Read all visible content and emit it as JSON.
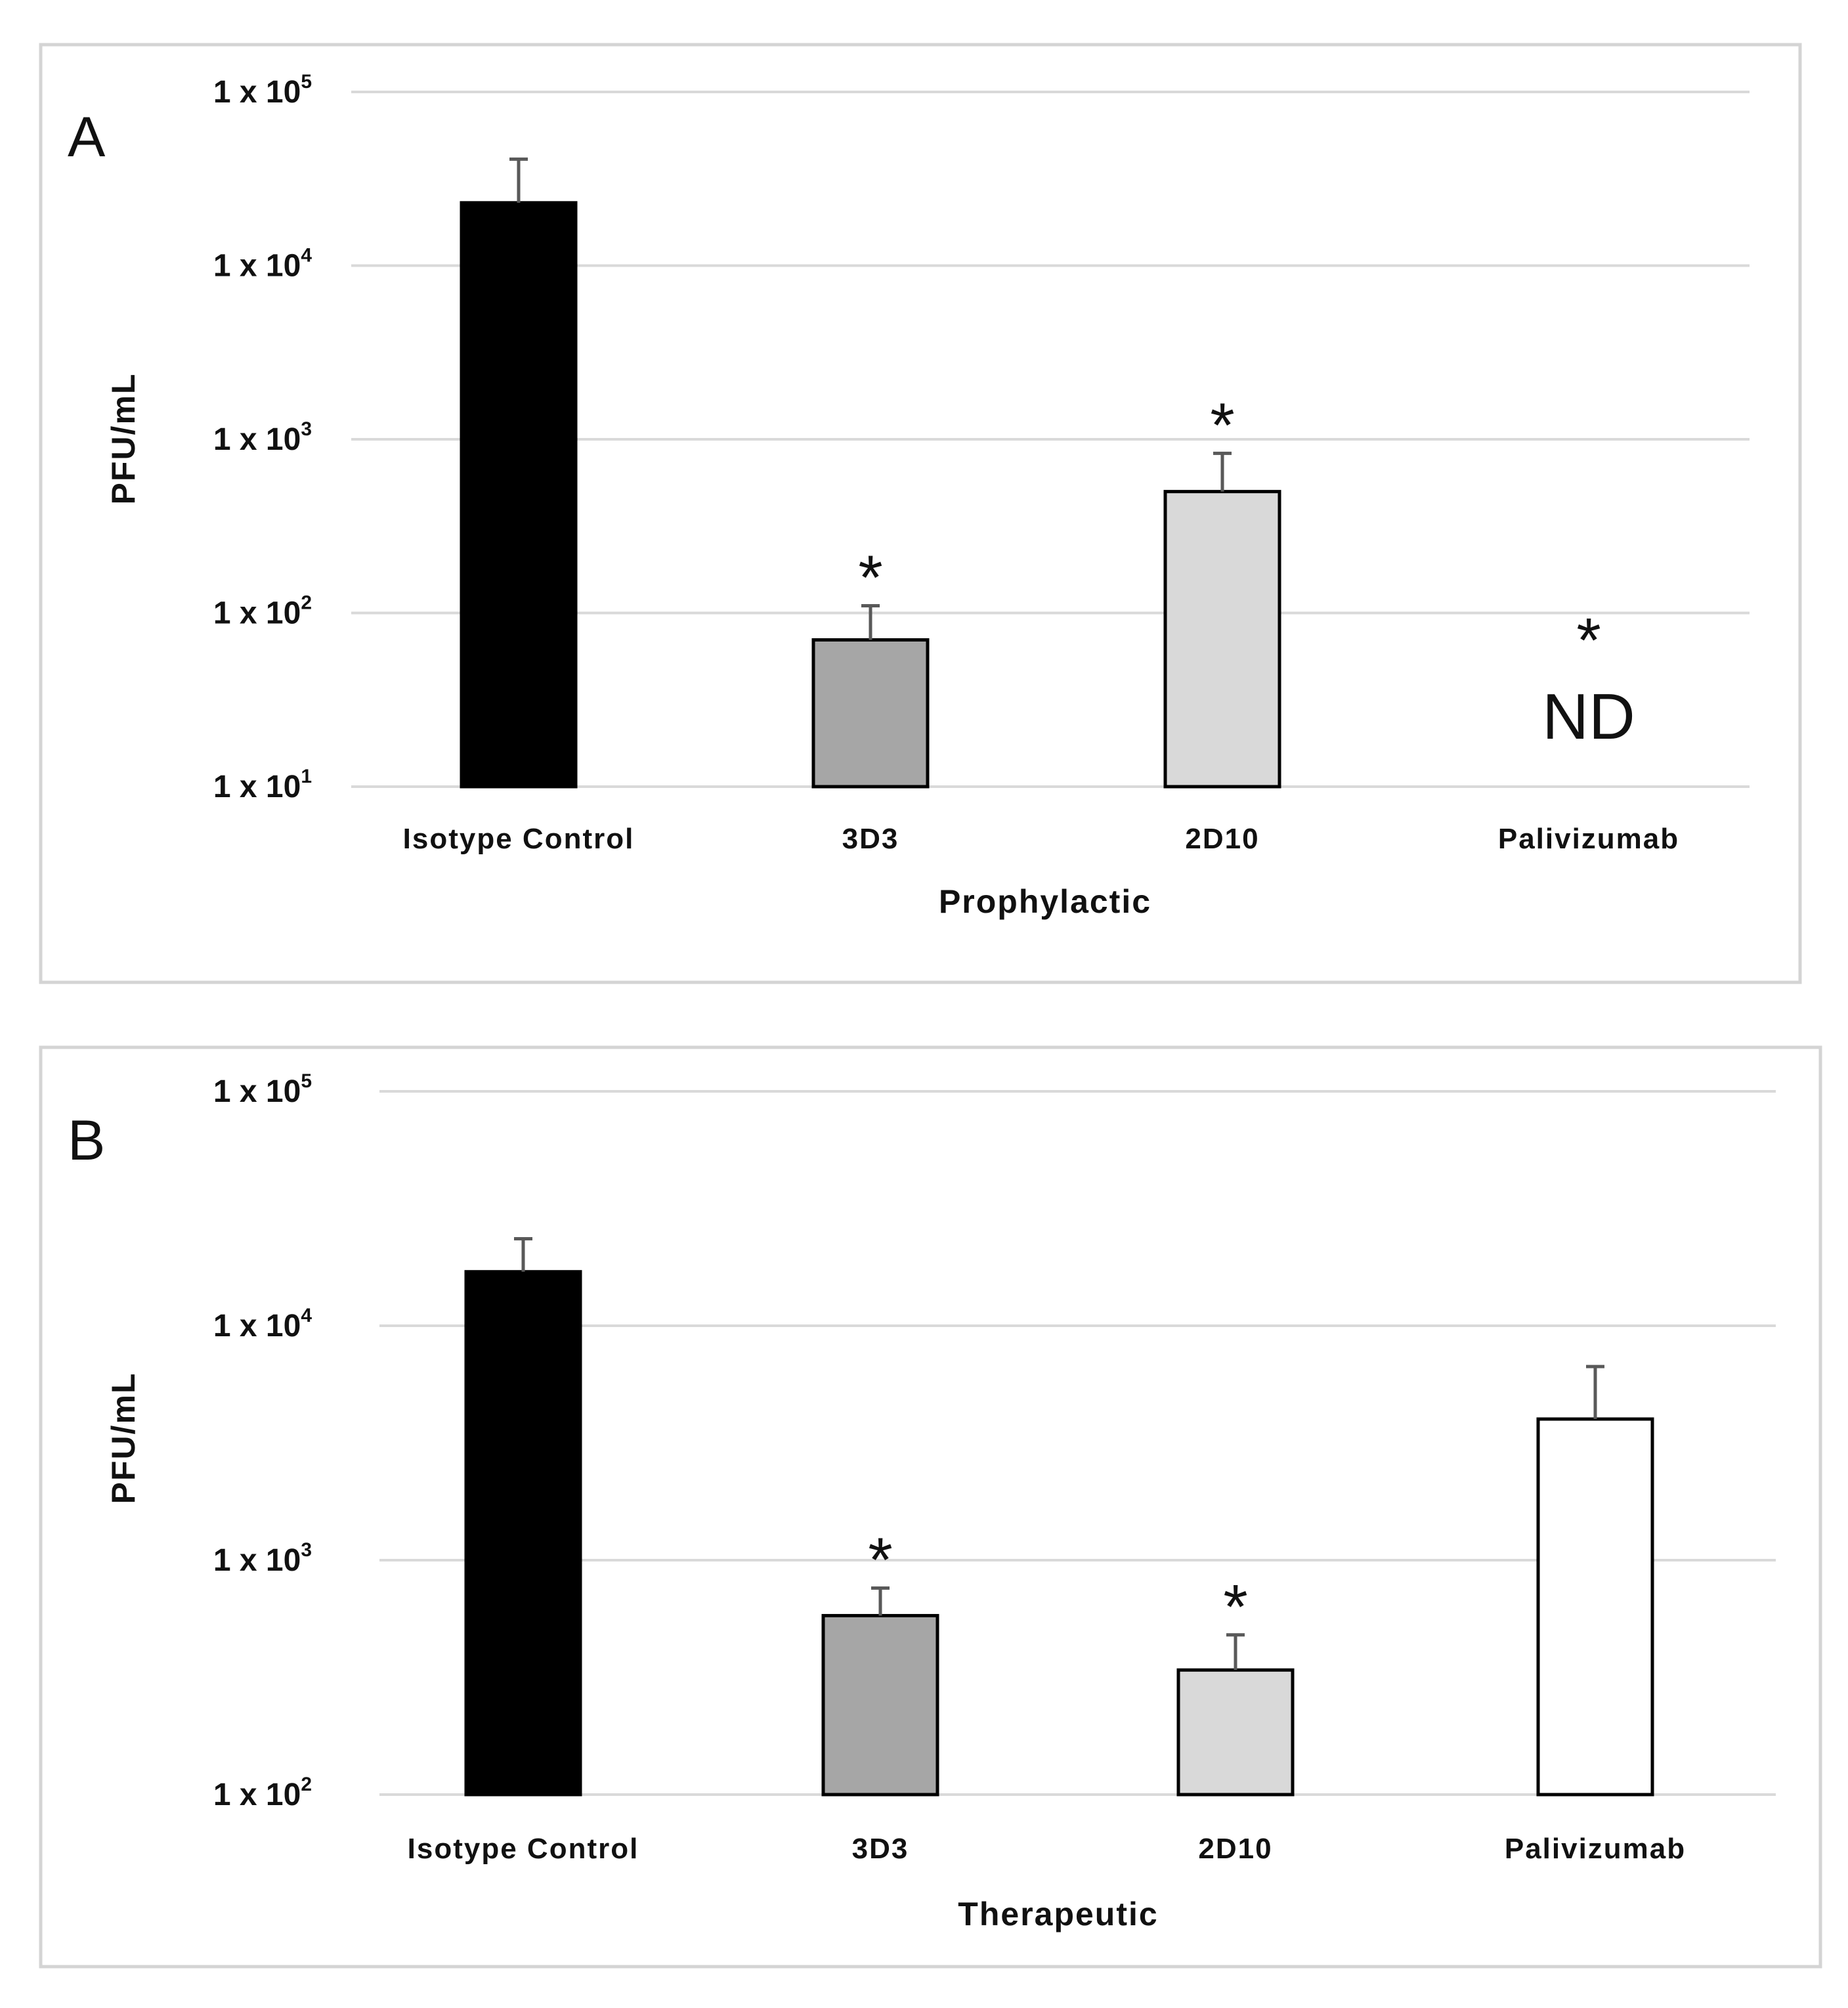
{
  "chart_data": [
    {
      "type": "bar",
      "panel_label": "A",
      "xlabel": "Prophylactic",
      "ylabel": "PFU/mL",
      "yscale": "log",
      "ylim": [
        10,
        100000
      ],
      "yticks": [
        {
          "base": "1 x 10",
          "exp": "1",
          "value": 10
        },
        {
          "base": "1 x 10",
          "exp": "2",
          "value": 100
        },
        {
          "base": "1 x 10",
          "exp": "3",
          "value": 1000
        },
        {
          "base": "1 x 10",
          "exp": "4",
          "value": 10000
        },
        {
          "base": "1 x 10",
          "exp": "5",
          "value": 100000
        }
      ],
      "categories": [
        "Isotype Control",
        "3D3",
        "2D10",
        "Palivizumab"
      ],
      "values": [
        23000,
        70,
        500,
        null
      ],
      "error_upper": [
        41000,
        110,
        830,
        null
      ],
      "bar_colors": [
        "#000000",
        "#a6a6a6",
        "#d9d9d9",
        "#ffffff"
      ],
      "significance": [
        "",
        "*",
        "*",
        "*"
      ],
      "annotations": [
        "",
        "",
        "",
        "ND"
      ]
    },
    {
      "type": "bar",
      "panel_label": "B",
      "xlabel": "Therapeutic",
      "ylabel": "PFU/mL",
      "yscale": "log",
      "ylim": [
        100,
        100000
      ],
      "yticks": [
        {
          "base": "1 x 10",
          "exp": "2",
          "value": 100
        },
        {
          "base": "1 x 10",
          "exp": "3",
          "value": 1000
        },
        {
          "base": "1 x 10",
          "exp": "4",
          "value": 10000
        },
        {
          "base": "1 x 10",
          "exp": "5",
          "value": 100000
        }
      ],
      "categories": [
        "Isotype Control",
        "3D3",
        "2D10",
        "Palivizumab"
      ],
      "values": [
        17000,
        580,
        340,
        4000
      ],
      "error_upper": [
        23500,
        760,
        480,
        6700
      ],
      "bar_colors": [
        "#000000",
        "#a6a6a6",
        "#d9d9d9",
        "#ffffff"
      ],
      "significance": [
        "",
        "*",
        "*",
        ""
      ],
      "annotations": [
        "",
        "",
        "",
        ""
      ]
    }
  ]
}
